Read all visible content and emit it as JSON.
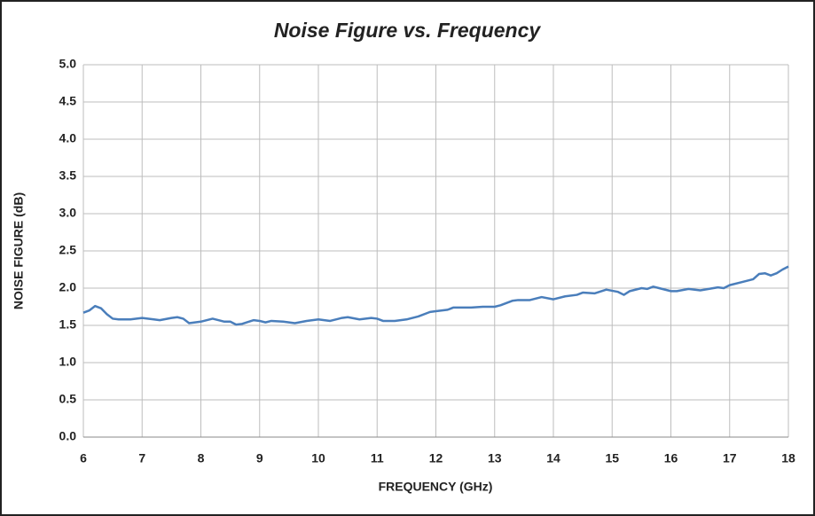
{
  "chart_data": {
    "type": "line",
    "title": "Noise Figure vs. Frequency",
    "xlabel": "FREQUENCY (GHz)",
    "ylabel": "NOISE FIGURE (dB)",
    "x": [
      6.0,
      6.1,
      6.2,
      6.3,
      6.4,
      6.5,
      6.6,
      6.8,
      7.0,
      7.2,
      7.3,
      7.5,
      7.6,
      7.7,
      7.8,
      8.0,
      8.2,
      8.4,
      8.5,
      8.6,
      8.7,
      8.9,
      9.0,
      9.1,
      9.2,
      9.4,
      9.6,
      9.8,
      10.0,
      10.2,
      10.4,
      10.5,
      10.7,
      10.9,
      11.0,
      11.1,
      11.3,
      11.5,
      11.7,
      11.9,
      12.0,
      12.2,
      12.3,
      12.6,
      12.8,
      13.0,
      13.1,
      13.3,
      13.4,
      13.6,
      13.8,
      14.0,
      14.2,
      14.4,
      14.5,
      14.7,
      14.9,
      15.1,
      15.2,
      15.3,
      15.5,
      15.6,
      15.7,
      15.8,
      16.0,
      16.1,
      16.3,
      16.5,
      16.8,
      16.9,
      17.0,
      17.2,
      17.4,
      17.5,
      17.6,
      17.7,
      17.8,
      17.9,
      18.0
    ],
    "series": [
      {
        "name": "Noise Figure",
        "color": "#4a7ebb",
        "values": [
          1.67,
          1.7,
          1.76,
          1.73,
          1.65,
          1.59,
          1.58,
          1.58,
          1.6,
          1.58,
          1.57,
          1.6,
          1.61,
          1.59,
          1.53,
          1.55,
          1.59,
          1.55,
          1.55,
          1.51,
          1.52,
          1.57,
          1.56,
          1.54,
          1.56,
          1.55,
          1.53,
          1.56,
          1.58,
          1.56,
          1.6,
          1.61,
          1.58,
          1.6,
          1.59,
          1.56,
          1.56,
          1.58,
          1.62,
          1.68,
          1.69,
          1.71,
          1.74,
          1.74,
          1.75,
          1.75,
          1.77,
          1.83,
          1.84,
          1.84,
          1.88,
          1.85,
          1.89,
          1.91,
          1.94,
          1.93,
          1.98,
          1.95,
          1.91,
          1.96,
          2.0,
          1.99,
          2.02,
          2.0,
          1.96,
          1.96,
          1.99,
          1.97,
          2.01,
          2.0,
          2.04,
          2.08,
          2.12,
          2.19,
          2.2,
          2.17,
          2.2,
          2.25,
          2.29
        ]
      }
    ],
    "xlim": [
      6,
      18
    ],
    "xticks": [
      6,
      7,
      8,
      9,
      10,
      11,
      12,
      13,
      14,
      15,
      16,
      17,
      18
    ],
    "ylim": [
      0,
      5
    ],
    "yticks": [
      {
        "value": 0,
        "label": "0.0"
      },
      {
        "value": 0.5,
        "label": "0.5"
      },
      {
        "value": 1,
        "label": "1.0"
      },
      {
        "value": 1.5,
        "label": "1.5"
      },
      {
        "value": 2,
        "label": "2.0"
      },
      {
        "value": 2.5,
        "label": "2.5"
      },
      {
        "value": 3,
        "label": "3.0"
      },
      {
        "value": 3.5,
        "label": "3.5"
      },
      {
        "value": 4,
        "label": "4.0"
      },
      {
        "value": 4.5,
        "label": "4.5"
      },
      {
        "value": 5,
        "label": "5.0"
      }
    ],
    "grid": true
  }
}
